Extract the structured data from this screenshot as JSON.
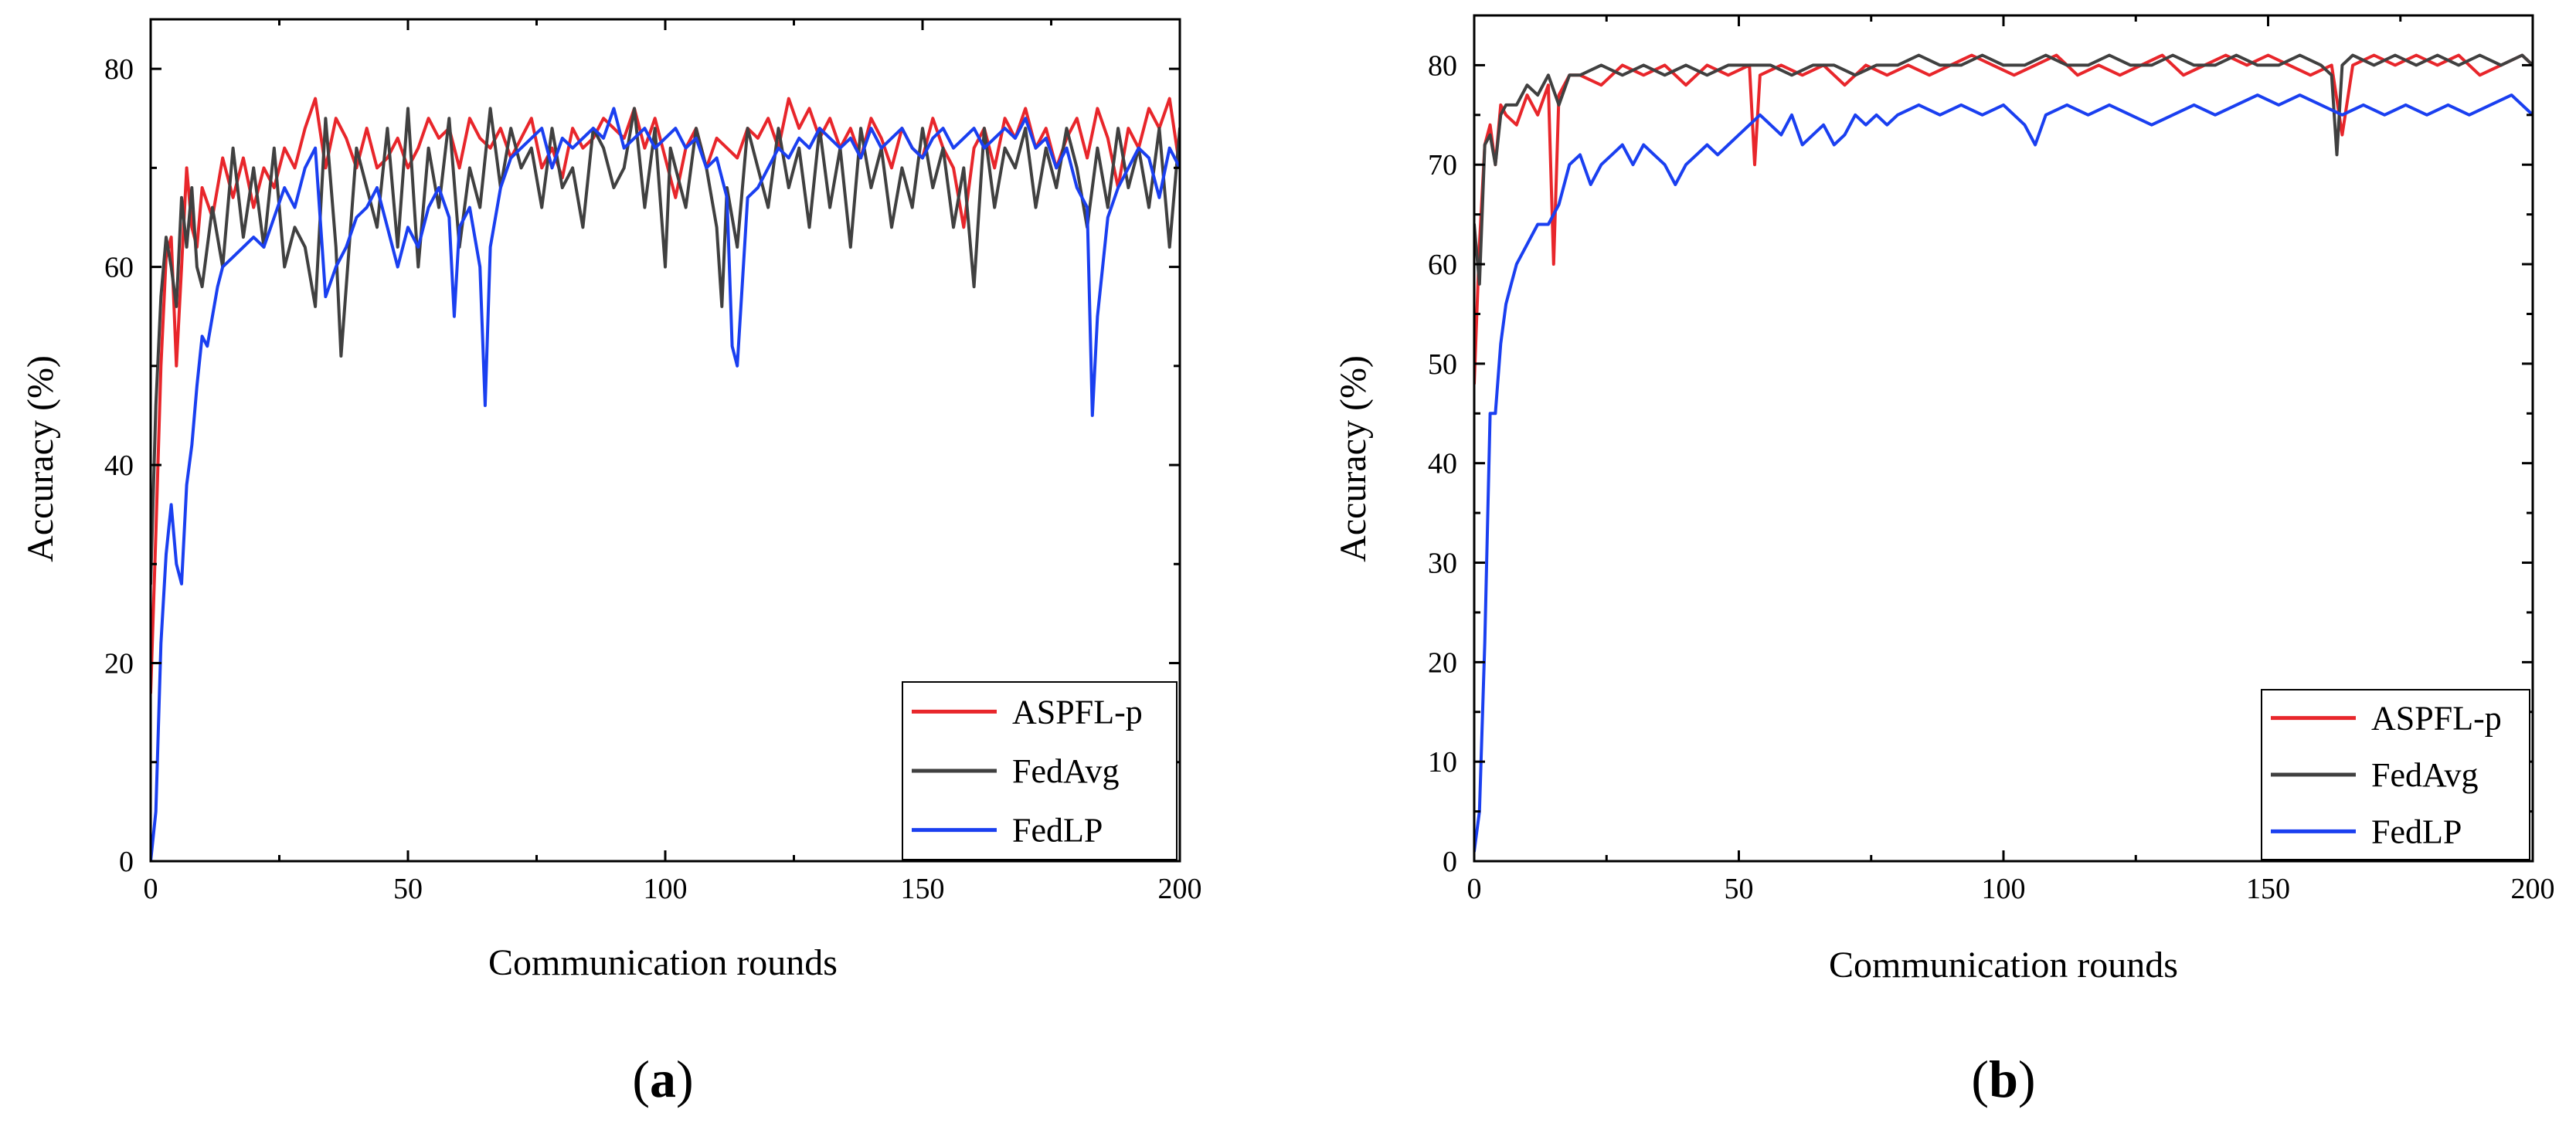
{
  "chart_data": [
    {
      "id": "a",
      "type": "line",
      "panel_label_open": "(",
      "panel_label_letter": "a",
      "panel_label_close": ")",
      "xlabel": "Communication rounds",
      "ylabel": "Accuracy (%)",
      "xlim": [
        0,
        200
      ],
      "ylim": [
        0,
        85
      ],
      "xticks": [
        0,
        50,
        100,
        150,
        200
      ],
      "yticks": [
        0,
        20,
        40,
        60,
        80
      ],
      "legend_position": "bottom-right",
      "series": [
        {
          "name": "ASPFL-p",
          "color": "#e8262b",
          "x": [
            0,
            1,
            2,
            3,
            4,
            5,
            6,
            7,
            8,
            9,
            10,
            12,
            14,
            16,
            18,
            20,
            22,
            24,
            26,
            28,
            30,
            32,
            34,
            36,
            38,
            40,
            42,
            44,
            46,
            48,
            50,
            52,
            54,
            56,
            58,
            60,
            62,
            64,
            66,
            68,
            70,
            72,
            74,
            76,
            78,
            80,
            82,
            84,
            86,
            88,
            90,
            92,
            94,
            96,
            98,
            100,
            102,
            104,
            106,
            108,
            110,
            112,
            114,
            116,
            118,
            120,
            122,
            124,
            126,
            128,
            130,
            132,
            134,
            136,
            138,
            140,
            142,
            144,
            146,
            148,
            150,
            152,
            154,
            156,
            158,
            160,
            162,
            164,
            166,
            168,
            170,
            172,
            174,
            176,
            178,
            180,
            182,
            184,
            186,
            188,
            190,
            192,
            194,
            196,
            198,
            200
          ],
          "y": [
            17,
            33,
            50,
            61,
            63,
            50,
            60,
            70,
            64,
            62,
            68,
            65,
            71,
            67,
            71,
            66,
            70,
            68,
            72,
            70,
            74,
            77,
            70,
            75,
            73,
            70,
            74,
            70,
            71,
            73,
            70,
            72,
            75,
            73,
            74,
            70,
            75,
            73,
            72,
            74,
            71,
            73,
            75,
            70,
            72,
            69,
            74,
            72,
            73,
            75,
            74,
            73,
            76,
            72,
            75,
            71,
            67,
            72,
            74,
            70,
            73,
            72,
            71,
            74,
            73,
            75,
            72,
            77,
            74,
            76,
            73,
            75,
            72,
            74,
            71,
            75,
            73,
            70,
            74,
            72,
            71,
            75,
            72,
            70,
            64,
            72,
            74,
            70,
            75,
            73,
            76,
            72,
            74,
            70,
            73,
            75,
            71,
            76,
            73,
            68,
            74,
            72,
            76,
            74,
            77,
            70
          ]
        },
        {
          "name": "FedAvg",
          "color": "#404040",
          "x": [
            0,
            1,
            2,
            3,
            4,
            5,
            6,
            7,
            8,
            9,
            10,
            12,
            14,
            16,
            18,
            20,
            22,
            24,
            26,
            28,
            30,
            32,
            34,
            36,
            37,
            38,
            40,
            42,
            44,
            46,
            48,
            50,
            52,
            54,
            56,
            58,
            60,
            62,
            64,
            66,
            68,
            70,
            72,
            74,
            76,
            78,
            80,
            82,
            84,
            86,
            88,
            90,
            92,
            94,
            96,
            98,
            100,
            101,
            102,
            104,
            106,
            108,
            110,
            111,
            112,
            114,
            116,
            118,
            120,
            122,
            124,
            126,
            128,
            130,
            132,
            134,
            136,
            138,
            140,
            142,
            144,
            146,
            148,
            150,
            152,
            154,
            156,
            158,
            160,
            162,
            164,
            166,
            168,
            170,
            172,
            174,
            176,
            178,
            180,
            182,
            184,
            186,
            188,
            190,
            192,
            194,
            196,
            198,
            200
          ],
          "y": [
            28,
            46,
            57,
            63,
            60,
            56,
            67,
            62,
            68,
            60,
            58,
            66,
            60,
            72,
            63,
            70,
            62,
            72,
            60,
            64,
            62,
            56,
            75,
            62,
            51,
            58,
            72,
            68,
            64,
            74,
            62,
            76,
            60,
            72,
            66,
            75,
            62,
            70,
            66,
            76,
            68,
            74,
            70,
            72,
            66,
            74,
            68,
            70,
            64,
            74,
            72,
            68,
            70,
            76,
            66,
            74,
            60,
            72,
            70,
            66,
            74,
            70,
            64,
            56,
            68,
            62,
            74,
            70,
            66,
            74,
            68,
            72,
            64,
            74,
            66,
            72,
            62,
            74,
            68,
            72,
            64,
            70,
            66,
            74,
            68,
            72,
            64,
            70,
            58,
            74,
            66,
            72,
            70,
            74,
            66,
            72,
            68,
            74,
            70,
            64,
            72,
            66,
            74,
            68,
            72,
            66,
            74,
            62,
            74
          ]
        },
        {
          "name": "FedLP",
          "color": "#1a3ff0",
          "x": [
            0,
            1,
            2,
            3,
            4,
            5,
            6,
            7,
            8,
            9,
            10,
            11,
            12,
            13,
            14,
            16,
            18,
            20,
            22,
            24,
            26,
            28,
            30,
            32,
            34,
            36,
            38,
            40,
            42,
            44,
            46,
            48,
            50,
            52,
            54,
            56,
            58,
            59,
            60,
            62,
            64,
            65,
            66,
            68,
            70,
            72,
            74,
            76,
            78,
            80,
            82,
            84,
            86,
            88,
            90,
            92,
            94,
            96,
            98,
            100,
            102,
            104,
            106,
            108,
            110,
            112,
            113,
            114,
            116,
            118,
            120,
            122,
            124,
            126,
            128,
            130,
            132,
            134,
            136,
            138,
            140,
            142,
            144,
            146,
            148,
            150,
            152,
            154,
            156,
            158,
            160,
            162,
            164,
            166,
            168,
            170,
            172,
            174,
            176,
            178,
            180,
            182,
            183,
            184,
            186,
            188,
            190,
            192,
            194,
            196,
            198,
            200
          ],
          "y": [
            0,
            5,
            22,
            31,
            36,
            30,
            28,
            38,
            42,
            48,
            53,
            52,
            55,
            58,
            60,
            61,
            62,
            63,
            62,
            65,
            68,
            66,
            70,
            72,
            57,
            60,
            62,
            65,
            66,
            68,
            64,
            60,
            64,
            62,
            66,
            68,
            65,
            55,
            64,
            66,
            60,
            46,
            62,
            68,
            71,
            72,
            73,
            74,
            70,
            73,
            72,
            73,
            74,
            73,
            76,
            72,
            73,
            74,
            72,
            73,
            74,
            72,
            73,
            70,
            71,
            67,
            52,
            50,
            67,
            68,
            70,
            72,
            71,
            73,
            72,
            74,
            73,
            72,
            73,
            71,
            74,
            72,
            73,
            74,
            72,
            71,
            73,
            74,
            72,
            73,
            74,
            72,
            73,
            74,
            73,
            75,
            72,
            73,
            70,
            72,
            68,
            66,
            45,
            55,
            65,
            68,
            70,
            72,
            71,
            67,
            72,
            70
          ]
        }
      ]
    },
    {
      "id": "b",
      "type": "line",
      "panel_label_open": "(",
      "panel_label_letter": "b",
      "panel_label_close": ")",
      "xlabel": "Communication rounds",
      "ylabel": "Accuracy (%)",
      "xlim": [
        0,
        200
      ],
      "ylim": [
        0,
        85
      ],
      "xticks": [
        0,
        50,
        100,
        150,
        200
      ],
      "yticks": [
        0,
        10,
        20,
        30,
        40,
        50,
        60,
        70,
        80
      ],
      "legend_position": "bottom-right",
      "series": [
        {
          "name": "ASPFL-p",
          "color": "#e8262b",
          "x": [
            0,
            1,
            2,
            3,
            4,
            5,
            6,
            8,
            10,
            12,
            14,
            15,
            16,
            18,
            20,
            24,
            28,
            32,
            36,
            40,
            44,
            48,
            52,
            53,
            54,
            58,
            62,
            66,
            70,
            74,
            78,
            82,
            86,
            90,
            94,
            98,
            102,
            106,
            110,
            114,
            118,
            122,
            126,
            130,
            134,
            138,
            142,
            146,
            150,
            154,
            158,
            162,
            164,
            166,
            170,
            174,
            178,
            182,
            186,
            190,
            194,
            198,
            200
          ],
          "y": [
            48,
            62,
            72,
            74,
            70,
            76,
            75,
            74,
            77,
            75,
            78,
            60,
            77,
            79,
            79,
            78,
            80,
            79,
            80,
            78,
            80,
            79,
            80,
            70,
            79,
            80,
            79,
            80,
            78,
            80,
            79,
            80,
            79,
            80,
            81,
            80,
            79,
            80,
            81,
            79,
            80,
            79,
            80,
            81,
            79,
            80,
            81,
            80,
            81,
            80,
            79,
            80,
            73,
            80,
            81,
            80,
            81,
            80,
            81,
            79,
            80,
            81,
            80
          ]
        },
        {
          "name": "FedAvg",
          "color": "#404040",
          "x": [
            0,
            1,
            2,
            3,
            4,
            5,
            6,
            8,
            10,
            12,
            14,
            16,
            18,
            20,
            24,
            28,
            32,
            36,
            40,
            44,
            48,
            52,
            56,
            60,
            64,
            68,
            72,
            76,
            80,
            84,
            88,
            92,
            96,
            100,
            104,
            108,
            112,
            116,
            120,
            124,
            128,
            132,
            136,
            140,
            144,
            148,
            152,
            156,
            160,
            162,
            163,
            164,
            166,
            170,
            174,
            178,
            182,
            186,
            190,
            194,
            198,
            200
          ],
          "y": [
            64,
            58,
            72,
            73,
            70,
            75,
            76,
            76,
            78,
            77,
            79,
            76,
            79,
            79,
            80,
            79,
            80,
            79,
            80,
            79,
            80,
            80,
            80,
            79,
            80,
            80,
            79,
            80,
            80,
            81,
            80,
            80,
            81,
            80,
            80,
            81,
            80,
            80,
            81,
            80,
            80,
            81,
            80,
            80,
            81,
            80,
            80,
            81,
            80,
            79,
            71,
            80,
            81,
            80,
            81,
            80,
            81,
            80,
            81,
            80,
            81,
            80
          ]
        },
        {
          "name": "FedLP",
          "color": "#1a3ff0",
          "x": [
            0,
            1,
            2,
            3,
            4,
            5,
            6,
            7,
            8,
            10,
            12,
            14,
            16,
            18,
            20,
            22,
            24,
            26,
            28,
            30,
            32,
            34,
            36,
            38,
            40,
            42,
            44,
            46,
            48,
            50,
            52,
            54,
            56,
            58,
            60,
            62,
            64,
            66,
            68,
            70,
            72,
            74,
            76,
            78,
            80,
            84,
            88,
            92,
            96,
            100,
            104,
            106,
            108,
            112,
            116,
            120,
            124,
            128,
            132,
            136,
            140,
            144,
            148,
            152,
            156,
            160,
            164,
            168,
            172,
            176,
            180,
            184,
            188,
            192,
            196,
            200
          ],
          "y": [
            1,
            5,
            22,
            45,
            45,
            52,
            56,
            58,
            60,
            62,
            64,
            64,
            66,
            70,
            71,
            68,
            70,
            71,
            72,
            70,
            72,
            71,
            70,
            68,
            70,
            71,
            72,
            71,
            72,
            73,
            74,
            75,
            74,
            73,
            75,
            72,
            73,
            74,
            72,
            73,
            75,
            74,
            75,
            74,
            75,
            76,
            75,
            76,
            75,
            76,
            74,
            72,
            75,
            76,
            75,
            76,
            75,
            74,
            75,
            76,
            75,
            76,
            77,
            76,
            77,
            76,
            75,
            76,
            75,
            76,
            75,
            76,
            75,
            76,
            77,
            75
          ]
        }
      ]
    }
  ]
}
